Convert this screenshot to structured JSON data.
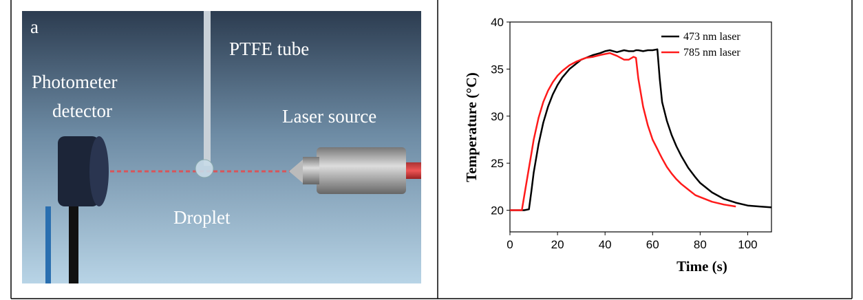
{
  "panel_a": {
    "label": "a",
    "tube": "PTFE tube",
    "detector": [
      "Photometer",
      "detector"
    ],
    "laser": "Laser source",
    "droplet": "Droplet"
  },
  "chart_data": {
    "type": "line",
    "xlabel": "Time (s)",
    "ylabel": "Temperature (°C)",
    "x": [
      0,
      5,
      6,
      8,
      9,
      10,
      12,
      14,
      16,
      18,
      20,
      22,
      25,
      28,
      30,
      32,
      35,
      38,
      40,
      42,
      45,
      48,
      50,
      52,
      53,
      54,
      56,
      58,
      60,
      62,
      63,
      64,
      66,
      68,
      70,
      72,
      75,
      78,
      80,
      85,
      90,
      95,
      100,
      105,
      110
    ],
    "series": [
      {
        "name": "473 nm laser",
        "color": "#000000",
        "values": [
          20,
          20,
          20,
          20.1,
          22,
          24,
          27,
          29.3,
          31,
          32.3,
          33.3,
          34.1,
          35,
          35.6,
          36,
          36.2,
          36.5,
          36.7,
          36.9,
          37,
          36.8,
          37,
          36.9,
          36.9,
          37,
          37,
          36.9,
          37,
          37,
          37.1,
          34,
          31.5,
          29.5,
          28,
          26.8,
          25.8,
          24.5,
          23.5,
          22.9,
          21.9,
          21.2,
          20.8,
          20.5,
          20.4,
          20.3
        ]
      },
      {
        "name": "785 nm laser",
        "color": "#ff1a1a",
        "values": [
          20,
          20,
          21.5,
          24.5,
          26,
          27.5,
          29.8,
          31.5,
          32.7,
          33.6,
          34.3,
          34.8,
          35.4,
          35.8,
          36,
          36.2,
          36.3,
          36.5,
          36.6,
          36.7,
          36.4,
          36,
          36,
          36.3,
          36.2,
          34,
          31,
          29,
          27.5,
          26.5,
          26,
          25.5,
          24.6,
          23.9,
          23.3,
          22.8,
          22.2,
          21.6,
          21.4,
          20.9,
          20.6,
          20.4,
          null,
          null,
          null
        ]
      }
    ],
    "xlim": [
      0,
      110
    ],
    "ylim": [
      17.7,
      40
    ],
    "xticks": [
      0,
      20,
      40,
      60,
      80,
      100
    ],
    "yticks": [
      20,
      25,
      30,
      35,
      40
    ],
    "legend": "upper right"
  }
}
